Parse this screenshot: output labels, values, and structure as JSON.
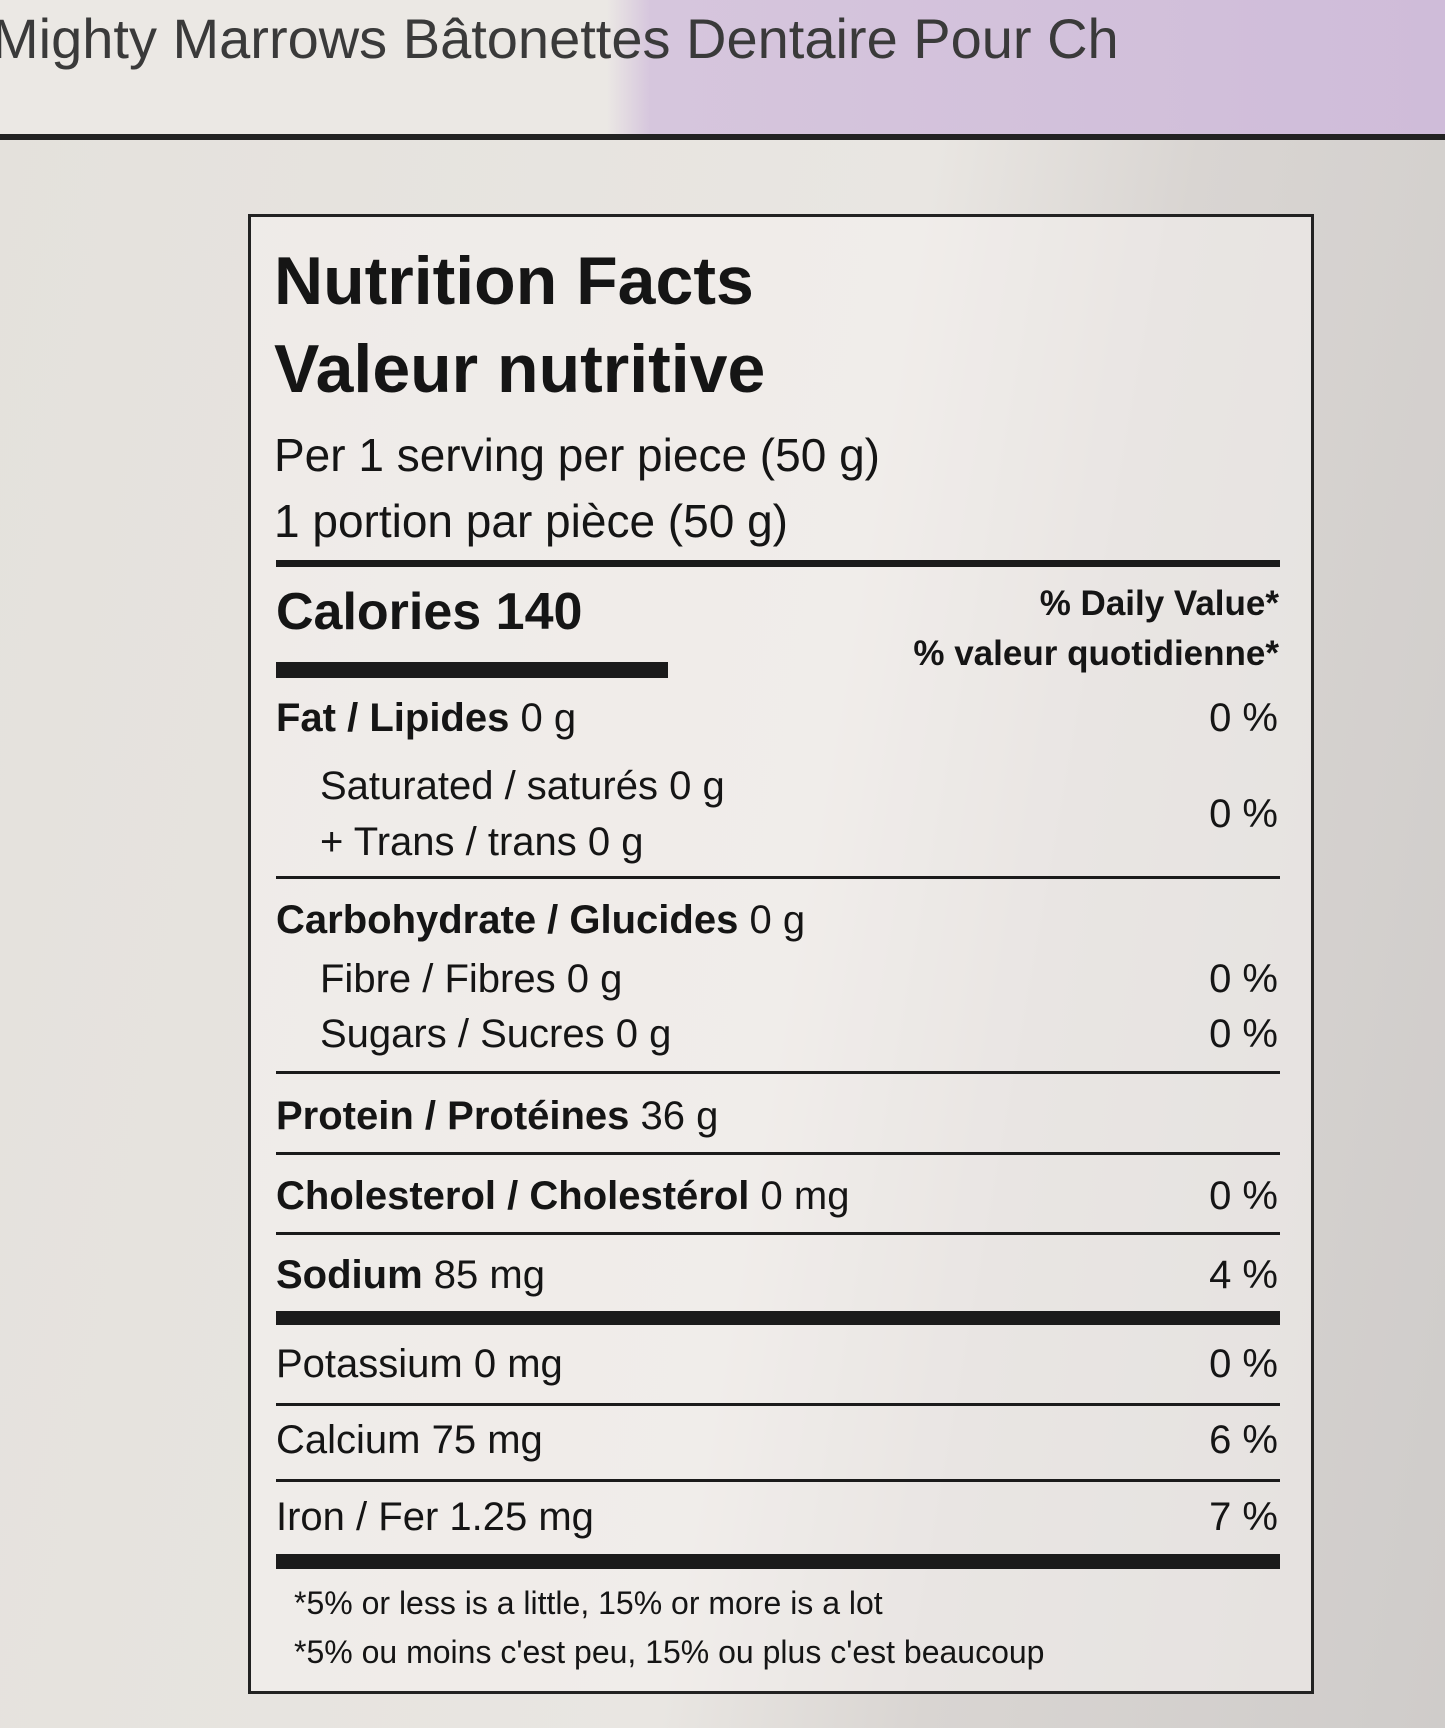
{
  "header": {
    "title": "Mighty Marrows Bâtonettes Dentaire Pour Ch"
  },
  "label": {
    "title_en": "Nutrition Facts",
    "title_fr": "Valeur nutritive",
    "serving": [
      "Per 1 serving per piece (50 g)",
      "1 portion par pièce (50 g)"
    ],
    "calories": {
      "label": "Calories",
      "value": "140"
    },
    "dv_header": [
      "% Daily Value*",
      "% valeur quotidienne*"
    ],
    "rows": [
      {
        "label": "Fat / Lipides",
        "amount": "0 g",
        "dv": "0 %",
        "bold": true
      },
      {
        "sub": [
          {
            "label": "Saturated / saturés",
            "amount": "0 g"
          },
          {
            "label": "+ Trans / trans",
            "amount": "0 g"
          }
        ],
        "dv": "0 %"
      },
      {
        "label": "Carbohydrate / Glucides",
        "amount": "0 g",
        "bold": true
      },
      {
        "label": "Fibre / Fibres",
        "amount": "0 g",
        "dv": "0 %"
      },
      {
        "label": "Sugars / Sucres",
        "amount": "0 g",
        "dv": "0 %"
      },
      {
        "label": "Protein / Protéines",
        "amount": "36 g",
        "bold": true
      },
      {
        "label": "Cholesterol / Cholestérol",
        "amount": "0 mg",
        "dv": "0 %",
        "bold": true
      },
      {
        "label": "Sodium",
        "amount": "85 mg",
        "dv": "4 %",
        "bold": true
      },
      {
        "label": "Potassium",
        "amount": "0 mg",
        "dv": "0 %"
      },
      {
        "label": "Calcium",
        "amount": "75 mg",
        "dv": "6 %"
      },
      {
        "label": "Iron / Fer",
        "amount": "1.25 mg",
        "dv": "7 %"
      }
    ],
    "footnotes": [
      "*5% or less is a little, 15% or more is a lot",
      "*5% ou moins c'est peu, 15% ou plus c'est beaucoup"
    ]
  }
}
